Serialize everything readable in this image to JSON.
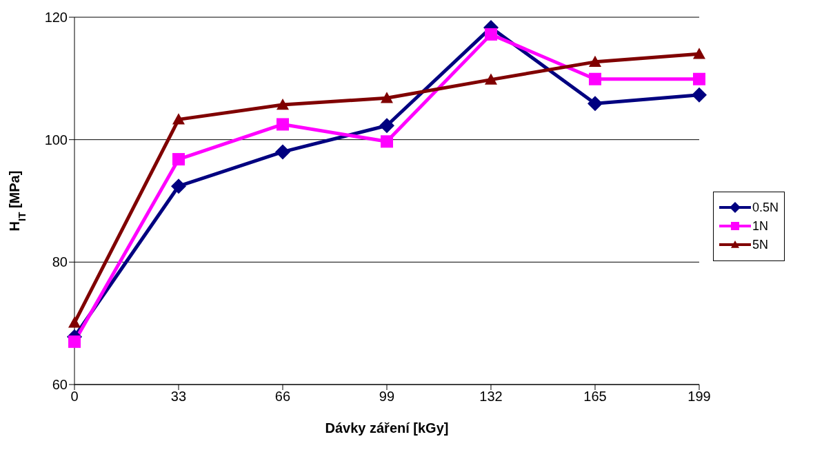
{
  "chart_data": {
    "type": "line",
    "xlabel": "Dávky záření [kGy]",
    "ylabel": "H$_{IT}$ [MPa]",
    "categories": [
      "0",
      "33",
      "66",
      "99",
      "132",
      "165",
      "199"
    ],
    "series": [
      {
        "name": "0.5N",
        "color": "#000080",
        "marker": "diamond",
        "values": [
          67.8,
          92.4,
          98.0,
          102.3,
          118.3,
          105.9,
          107.3
        ]
      },
      {
        "name": "1N",
        "color": "#ff00ff",
        "marker": "square",
        "values": [
          67.0,
          96.8,
          102.5,
          99.7,
          117.2,
          109.9,
          109.9
        ]
      },
      {
        "name": "5N",
        "color": "#800000",
        "marker": "triangle",
        "values": [
          70.1,
          103.3,
          105.7,
          106.8,
          109.8,
          112.7,
          114.0
        ]
      }
    ],
    "ylim": [
      60,
      120
    ],
    "yticks": [
      60,
      80,
      100,
      120
    ],
    "grid": "y",
    "legend": "right"
  }
}
